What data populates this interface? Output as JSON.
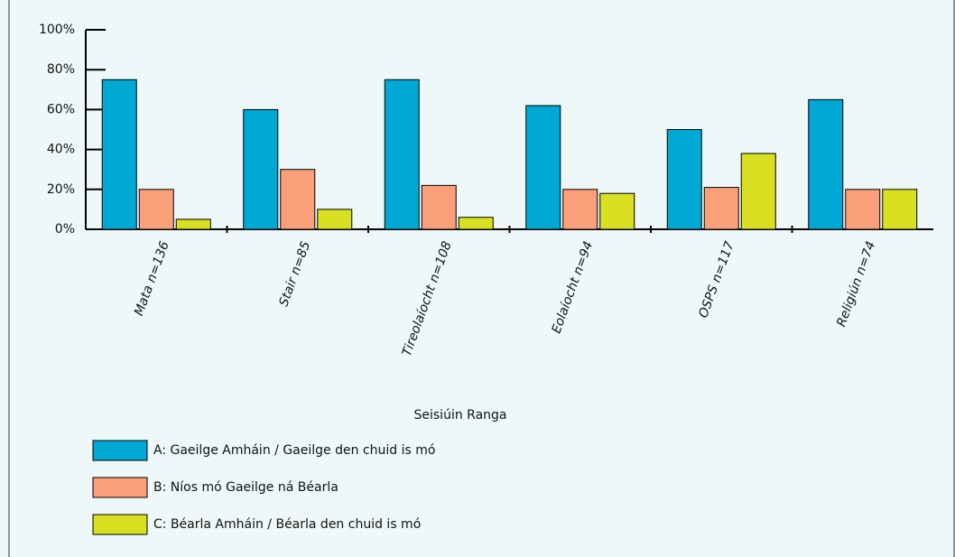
{
  "chart_data": {
    "type": "bar",
    "xlabel": "Seisiúin Ranga",
    "categories": [
      "Mata n=136",
      "Stair n=85",
      "Tireolaíocht n=108",
      "Eolaíocht n=94",
      "OSPS n=117",
      "Religiún n=74"
    ],
    "series": [
      {
        "name": "A: Gaeilge Amháin / Gaeilge den chuid is mó",
        "color": "#00a9d4",
        "values": [
          75,
          60,
          75,
          62,
          50,
          65
        ]
      },
      {
        "name": "B: Níos mó Gaeilge ná Béarla",
        "color": "#f9a07a",
        "values": [
          20,
          30,
          22,
          20,
          21,
          20
        ]
      },
      {
        "name": "C: Béarla Amháin / Béarla den chuid is mó",
        "color": "#d8e021",
        "values": [
          5,
          10,
          6,
          18,
          38,
          20
        ]
      }
    ],
    "ylim": [
      0,
      100
    ],
    "yticks": [
      {
        "value": 0,
        "label": "0%"
      },
      {
        "value": 20,
        "label": "20%"
      },
      {
        "value": 40,
        "label": "40%"
      },
      {
        "value": 60,
        "label": "60%"
      },
      {
        "value": 80,
        "label": "80%"
      },
      {
        "value": 100,
        "label": "100%"
      }
    ]
  }
}
